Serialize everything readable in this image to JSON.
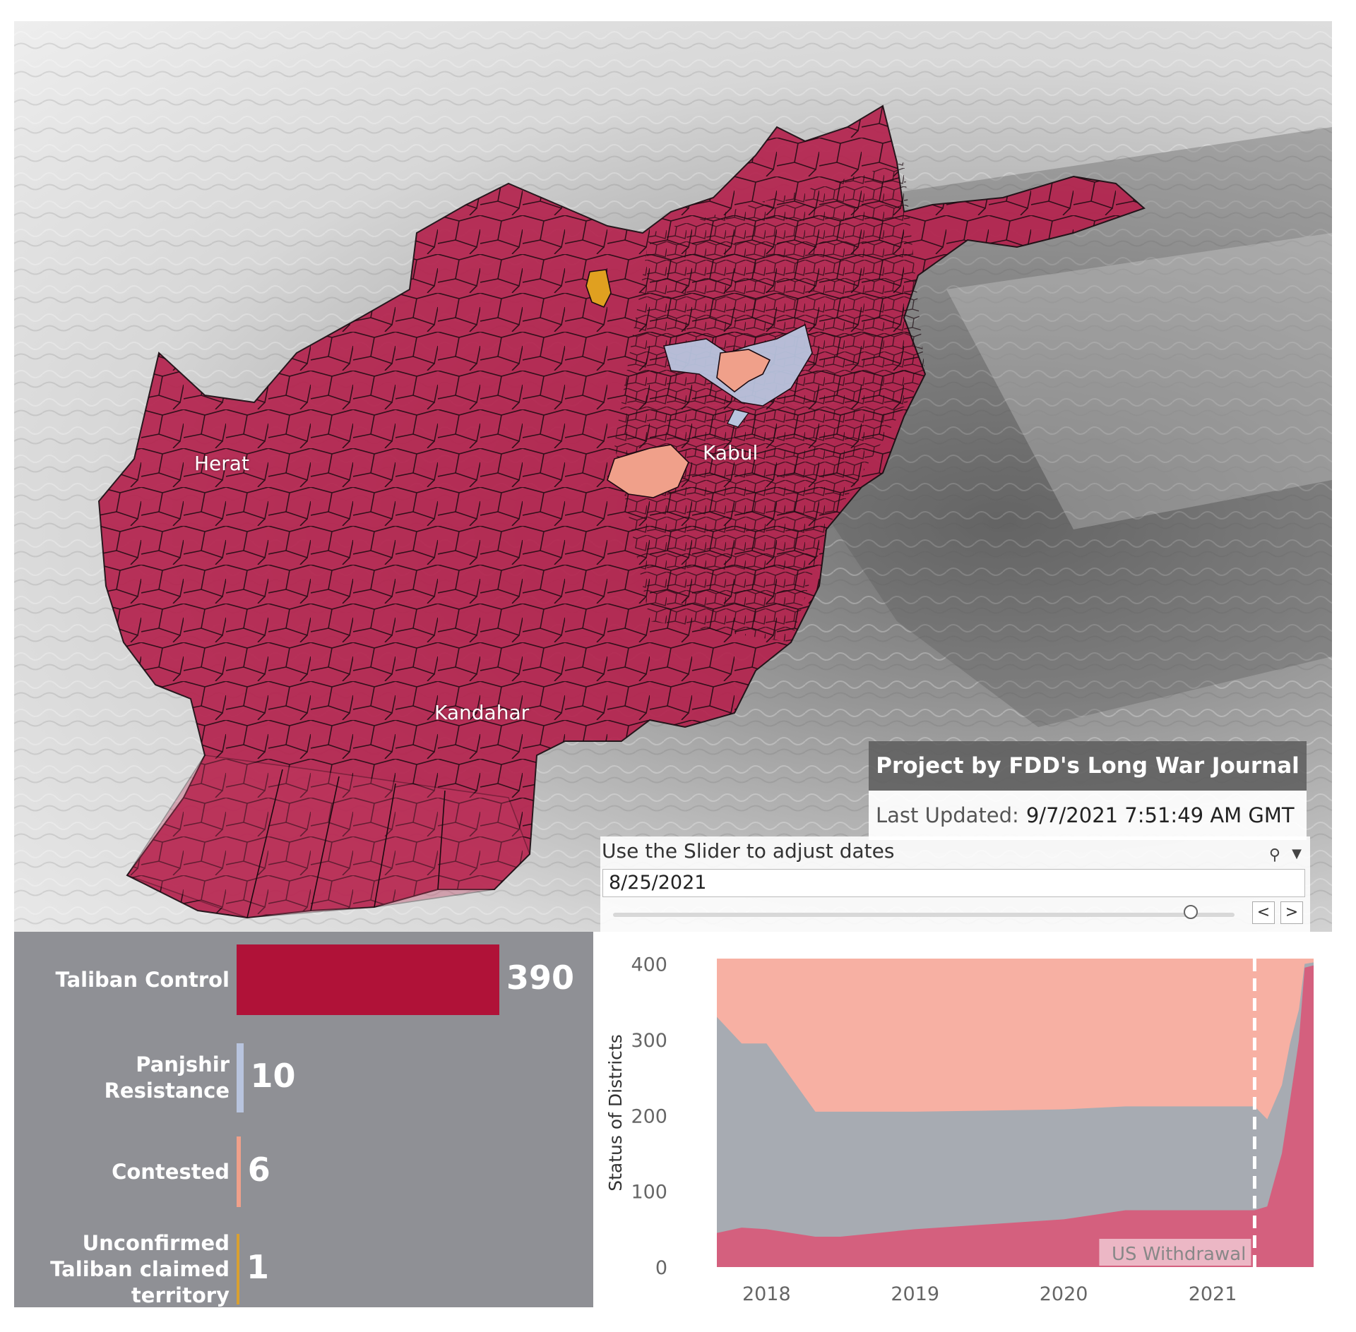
{
  "map": {
    "cities": [
      {
        "name": "Herat"
      },
      {
        "name": "Kabul"
      },
      {
        "name": "Kandahar"
      }
    ],
    "legend_colors": {
      "taliban_control": "#b4234e",
      "panjshir_resistance": "#b8c4de",
      "contested": "#f0a08a",
      "unconfirmed": "#e0a020"
    }
  },
  "overlay": {
    "project": "Project by FDD's Long War Journal",
    "last_updated_label": "Last Updated:",
    "last_updated_value": "9/7/2021 7:51:49 AM GMT"
  },
  "slider": {
    "label": "Use the Slider to adjust dates",
    "value": "8/25/2021",
    "position_fraction": 0.93,
    "search_icon": "search-icon",
    "dropdown_icon": "chevron-down-icon",
    "prev": "<",
    "next": ">"
  },
  "bars": [
    {
      "label_lines": [
        "Taliban Control"
      ],
      "value": 390,
      "value_text": "390",
      "color": "#b01238"
    },
    {
      "label_lines": [
        "Panjshir",
        "Resistance"
      ],
      "value": 10,
      "value_text": "10",
      "color": "#b8c4de"
    },
    {
      "label_lines": [
        "Contested"
      ],
      "value": 6,
      "value_text": "6",
      "color": "#f0a08a"
    },
    {
      "label_lines": [
        "Unconfirmed",
        "Taliban claimed",
        "territory"
      ],
      "value": 1,
      "value_text": "1",
      "color": "#d9a030"
    }
  ],
  "chart_data": {
    "type": "area",
    "ylabel": "Status of Districts",
    "ylim": [
      0,
      407
    ],
    "yticks": [
      0,
      100,
      200,
      300,
      400
    ],
    "x_range": [
      "2017-09-01",
      "2021-09-06"
    ],
    "xticks": [
      "2018",
      "2019",
      "2020",
      "2021"
    ],
    "annotation": "US Withdrawal",
    "annotation_date": "2021-04-14",
    "series": [
      {
        "color": "#d4607e",
        "points": [
          [
            "2017-09-01",
            45
          ],
          [
            "2017-11-01",
            52
          ],
          [
            "2018-01-01",
            50
          ],
          [
            "2018-05-01",
            40
          ],
          [
            "2018-07-01",
            40
          ],
          [
            "2019-01-01",
            50
          ],
          [
            "2020-01-01",
            63
          ],
          [
            "2020-06-01",
            75
          ],
          [
            "2021-04-14",
            75
          ],
          [
            "2021-05-15",
            80
          ],
          [
            "2021-06-20",
            150
          ],
          [
            "2021-07-10",
            220
          ],
          [
            "2021-08-01",
            300
          ],
          [
            "2021-08-15",
            395
          ],
          [
            "2021-09-06",
            398
          ]
        ]
      },
      {
        "color": "#a7abb2",
        "points": [
          [
            "2017-09-01",
            330
          ],
          [
            "2017-11-01",
            295
          ],
          [
            "2018-01-01",
            295
          ],
          [
            "2018-05-01",
            205
          ],
          [
            "2018-07-01",
            205
          ],
          [
            "2019-01-01",
            205
          ],
          [
            "2020-01-01",
            208
          ],
          [
            "2020-06-01",
            212
          ],
          [
            "2021-04-14",
            212
          ],
          [
            "2021-05-15",
            195
          ],
          [
            "2021-06-20",
            240
          ],
          [
            "2021-07-10",
            295
          ],
          [
            "2021-08-01",
            340
          ],
          [
            "2021-08-15",
            400
          ],
          [
            "2021-09-06",
            402
          ]
        ]
      },
      {
        "color": "#f7b0a3",
        "points": [
          [
            "2017-09-01",
            407
          ],
          [
            "2021-09-06",
            407
          ]
        ]
      }
    ]
  }
}
